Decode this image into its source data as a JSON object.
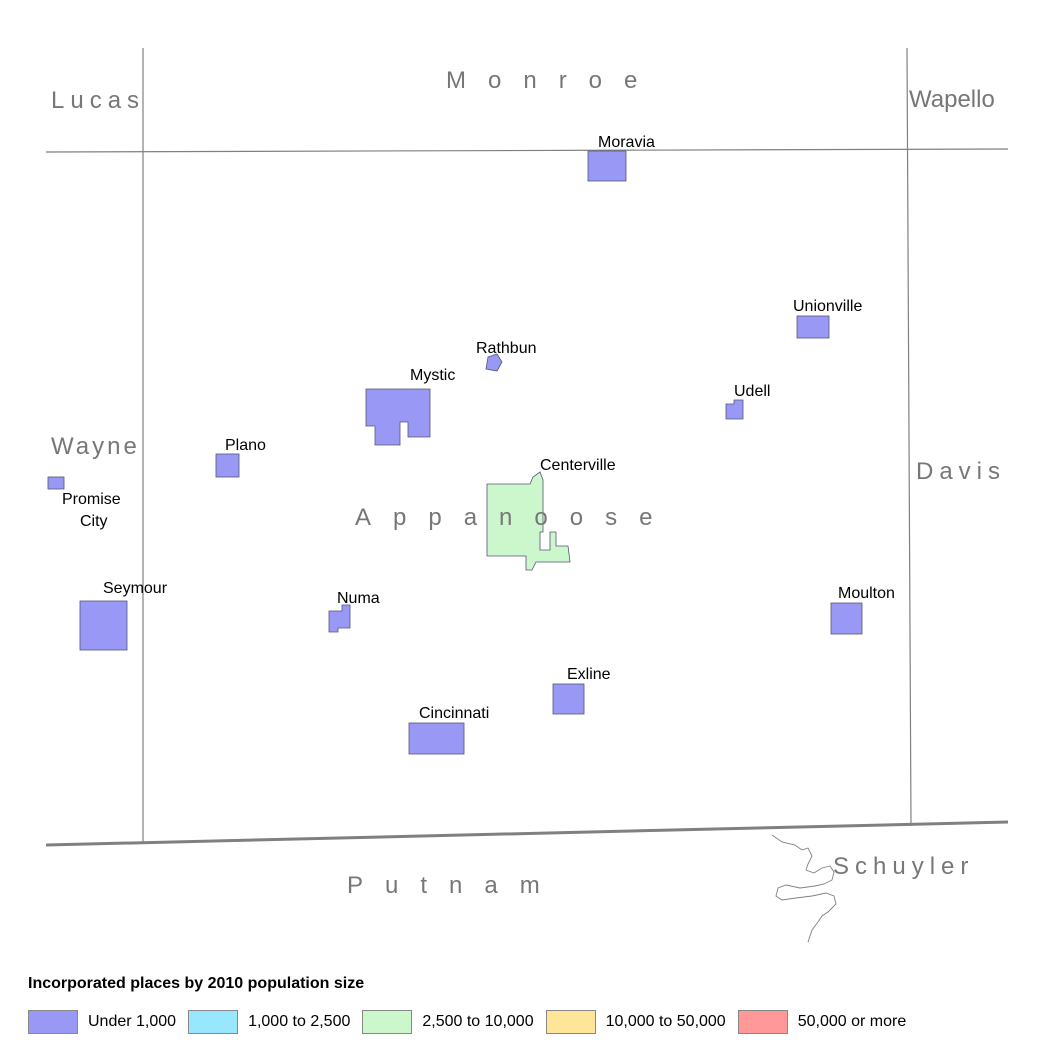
{
  "counties": {
    "center": "Appanoose",
    "north": "Monroe",
    "northwest": "Lucas",
    "northeast": "Wapello",
    "west": "Wayne",
    "east": "Davis",
    "south": "Putnam",
    "southeast": "Schuyler"
  },
  "places": [
    {
      "id": "moravia",
      "label": "Moravia",
      "category": "Under 1,000"
    },
    {
      "id": "unionville",
      "label": "Unionville",
      "category": "Under 1,000"
    },
    {
      "id": "rathbun",
      "label": "Rathbun",
      "category": "Under 1,000"
    },
    {
      "id": "mystic",
      "label": "Mystic",
      "category": "Under 1,000"
    },
    {
      "id": "udell",
      "label": "Udell",
      "category": "Under 1,000"
    },
    {
      "id": "plano",
      "label": "Plano",
      "category": "Under 1,000"
    },
    {
      "id": "centerville",
      "label": "Centerville",
      "category": "2,500 to 10,000"
    },
    {
      "id": "promise-city-line1",
      "label": "Promise",
      "category": "Under 1,000"
    },
    {
      "id": "promise-city-line2",
      "label": "City",
      "category": "Under 1,000"
    },
    {
      "id": "seymour",
      "label": "Seymour",
      "category": "Under 1,000"
    },
    {
      "id": "numa",
      "label": "Numa",
      "category": "Under 1,000"
    },
    {
      "id": "moulton",
      "label": "Moulton",
      "category": "Under 1,000"
    },
    {
      "id": "exline",
      "label": "Exline",
      "category": "Under 1,000"
    },
    {
      "id": "cincinnati",
      "label": "Cincinnati",
      "category": "Under 1,000"
    }
  ],
  "legend": {
    "title": "Incorporated places by 2010 population size",
    "items": [
      {
        "label": "Under 1,000",
        "color": "#9999f5"
      },
      {
        "label": "1,000 to 2,500",
        "color": "#99e6ff"
      },
      {
        "label": "2,500 to 10,000",
        "color": "#ccf7cc"
      },
      {
        "label": "10,000 to 50,000",
        "color": "#ffe599"
      },
      {
        "label": "50,000 or more",
        "color": "#ff9999"
      }
    ]
  }
}
